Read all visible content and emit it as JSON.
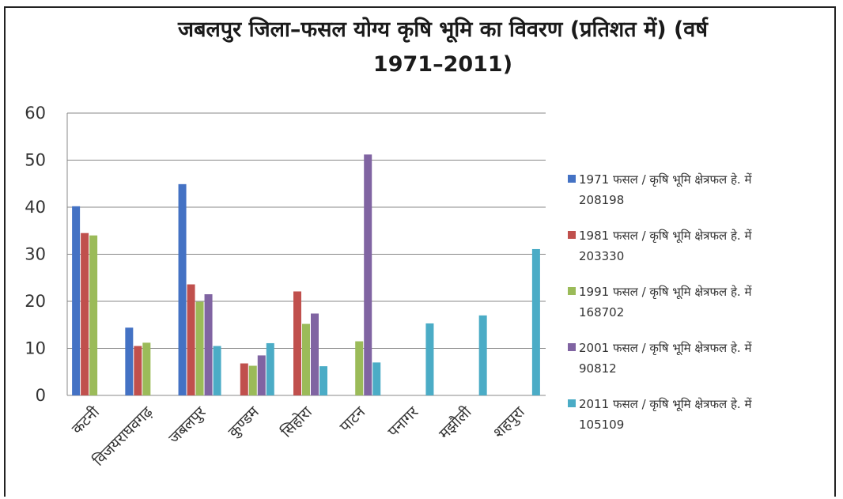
{
  "chart_data": {
    "type": "bar",
    "title": "जबलपुर जिला–फसल योग्य   कृषि भूमि का विवरण (प्रतिशत में) (वर्ष 1971–2011)",
    "title_line1": "जबलपुर जिला–फसल योग्य   कृषि भूमि का विवरण (प्रतिशत में) (वर्ष",
    "title_line2": "1971–2011)",
    "xlabel": "",
    "ylabel": "",
    "ylim": [
      0,
      60
    ],
    "yticks": [
      0,
      10,
      20,
      30,
      40,
      50,
      60
    ],
    "grid": true,
    "legend_position": "right",
    "categories": [
      "कटनी",
      "विजयराघवगढ़",
      "जबलपुर",
      "कुण्डम",
      "सिहोरा",
      "पाटन",
      "पनागर",
      "मझौली",
      "शहपुरा"
    ],
    "series": [
      {
        "name": "1971 फसल / कृषि भूमि क्षेत्रफल हे. में 208198",
        "color": "#4472c4",
        "values": [
          40.2,
          null,
          44.9,
          null,
          null,
          null,
          null,
          null,
          null
        ]
      },
      {
        "name": "1981 फसल / कृषि भूमि क्षेत्रफल हे. में 203330",
        "color": "#c0504d",
        "values": [
          34.5,
          10.5,
          23.6,
          6.8,
          22.1,
          null,
          null,
          null,
          null
        ]
      },
      {
        "name": "1991 फसल / कृषि भूमि क्षेत्रफल हे. में 168702",
        "color": "#9bbb59",
        "values": [
          34.0,
          11.2,
          19.9,
          6.3,
          15.2,
          11.5,
          null,
          null,
          null
        ]
      },
      {
        "name": "2001 फसल / कृषि भूमि क्षेत्रफल हे. में 90812",
        "color": "#8064a2",
        "values": [
          null,
          null,
          21.5,
          8.5,
          17.4,
          51.2,
          null,
          null,
          null
        ]
      },
      {
        "name": "2011 फसल / कृषि भूमि क्षेत्रफल हे. में 105109",
        "color": "#4bacc6",
        "values": [
          null,
          null,
          10.5,
          11.1,
          6.2,
          7.0,
          15.3,
          17.0,
          31.1
        ]
      }
    ],
    "extra_category_values": {
      "विजयराघवगढ़_1971": 14.4
    }
  }
}
